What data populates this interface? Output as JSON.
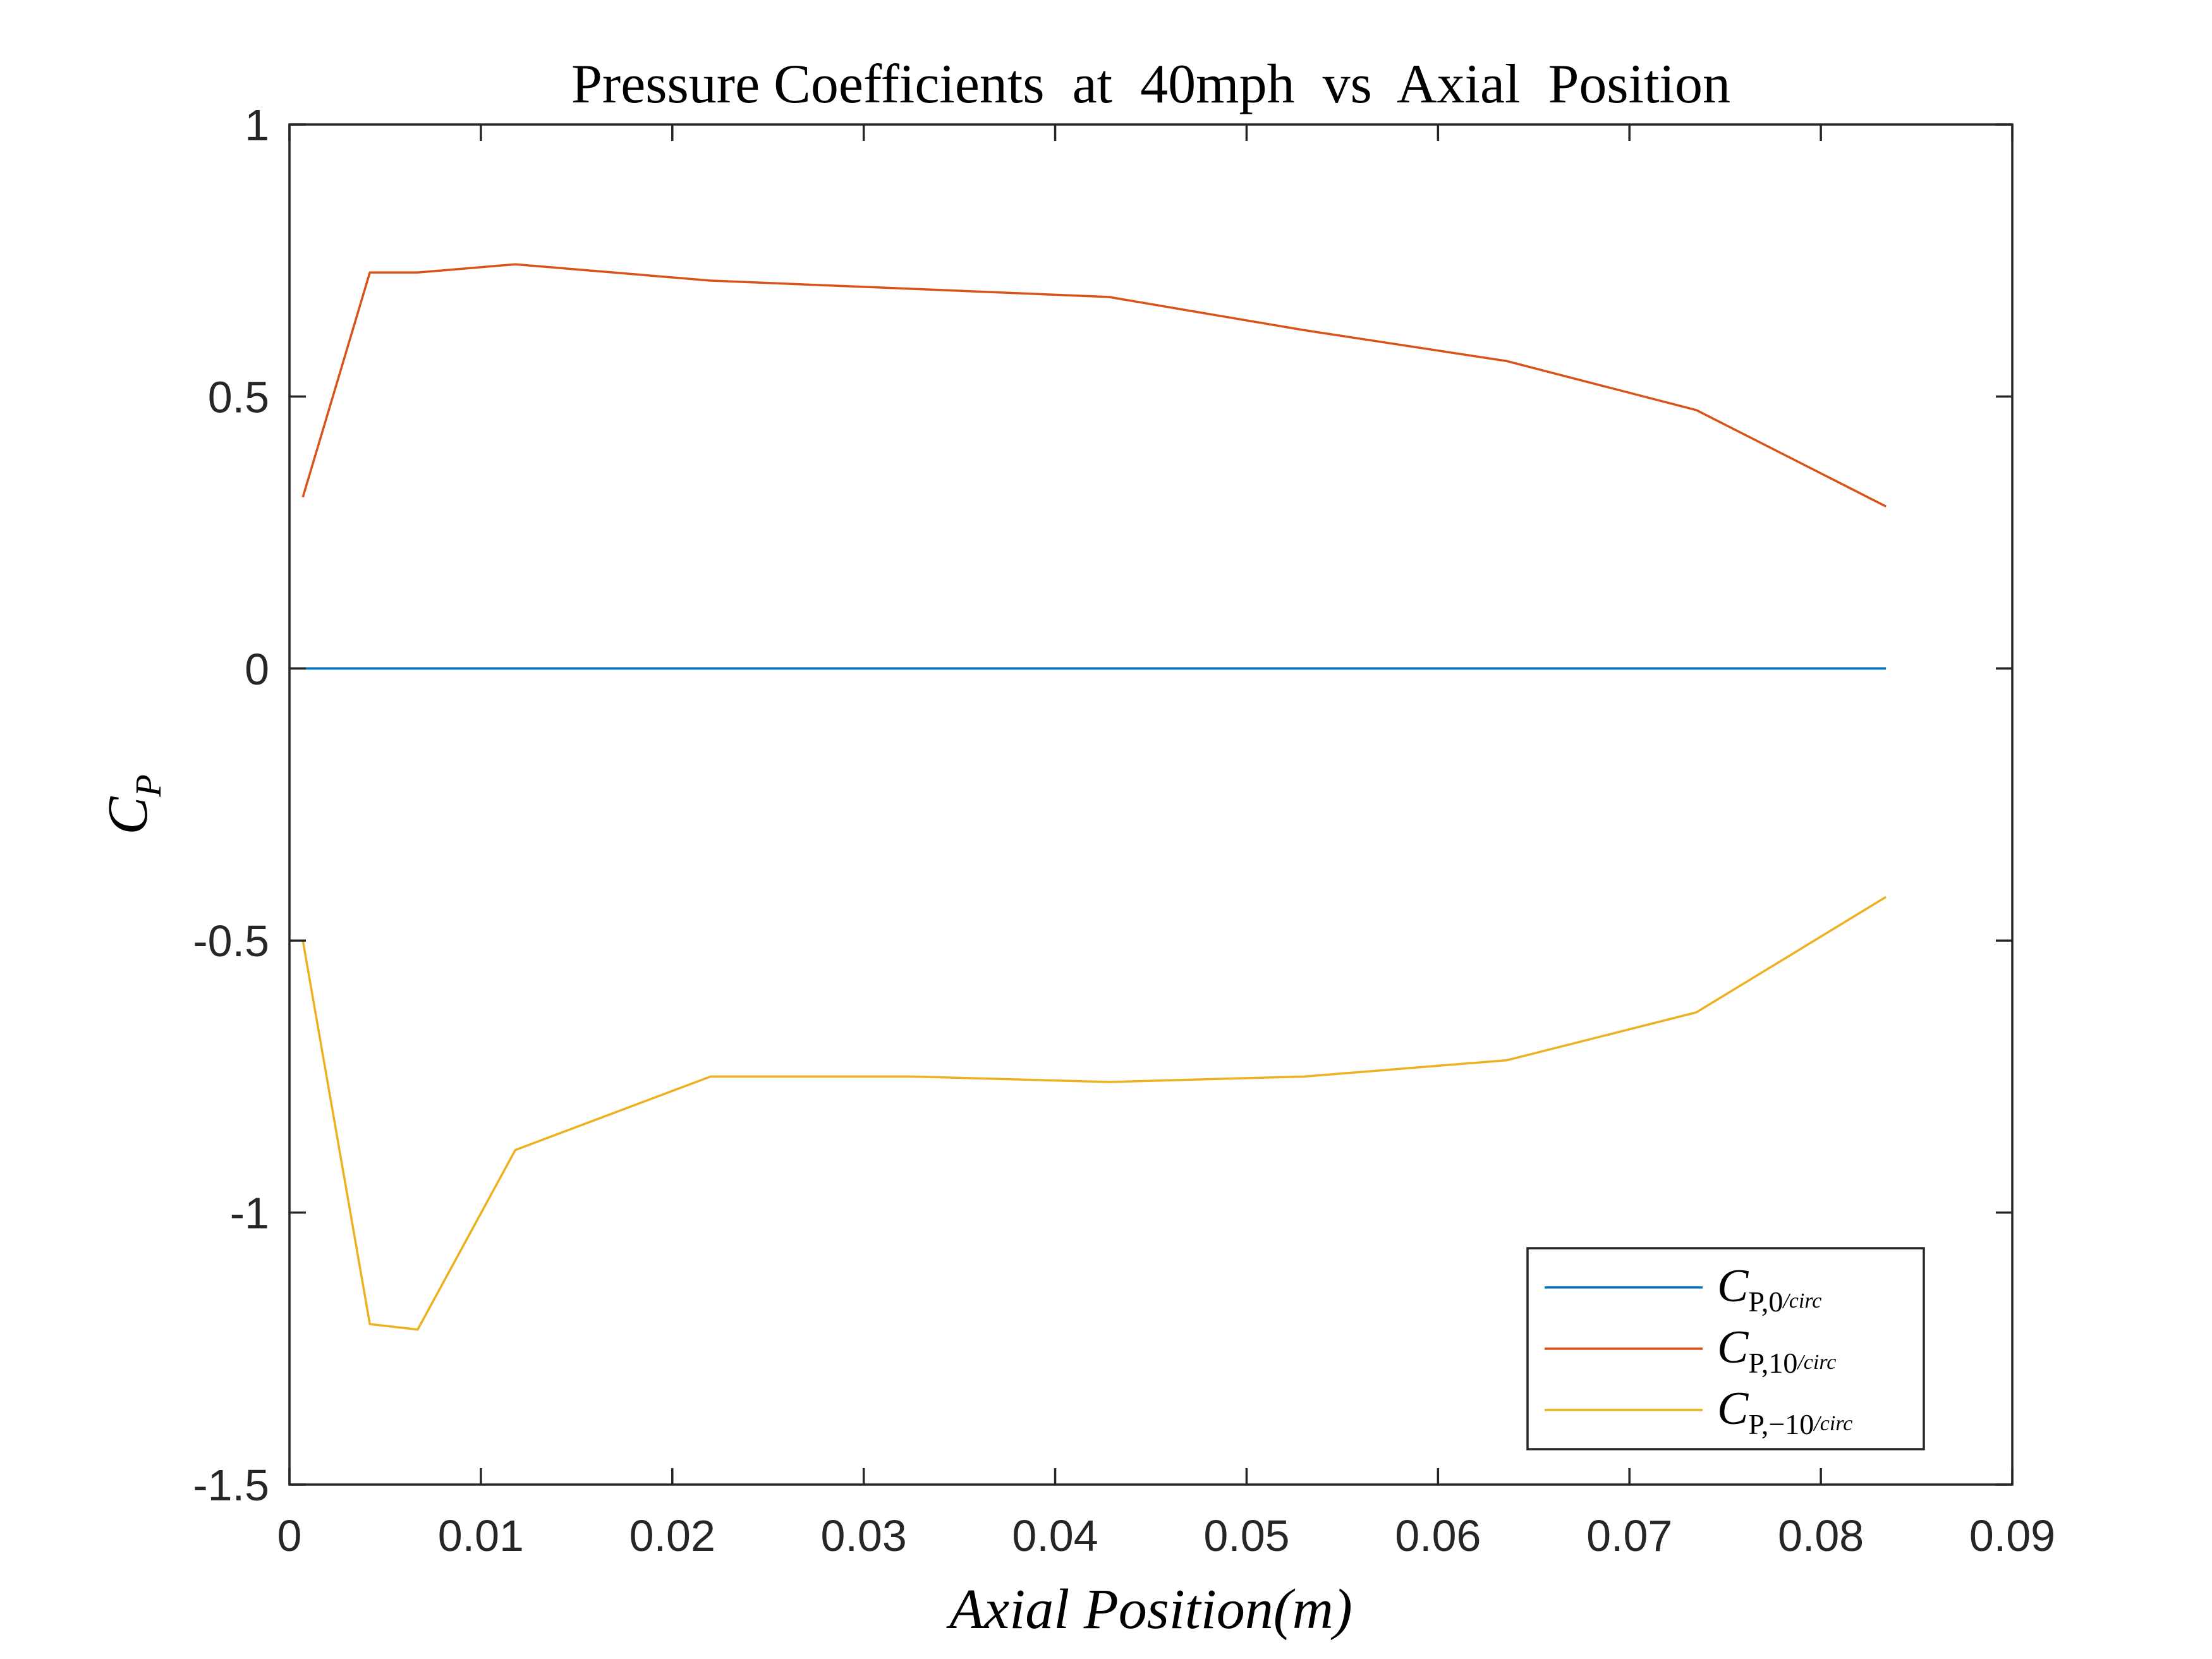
{
  "chart_data": {
    "type": "line",
    "title": "Pressure Coefficients  at  40mph  vs  Axial  Position",
    "xlabel": "Axial Position(m)",
    "ylabel": {
      "main": "C",
      "sub": "P"
    },
    "xlim": [
      0,
      0.09
    ],
    "ylim": [
      -1.5,
      1
    ],
    "xticks": [
      0,
      0.01,
      0.02,
      0.03,
      0.04,
      0.05,
      0.06,
      0.07,
      0.08,
      0.09
    ],
    "xtick_labels": [
      "0",
      "0.01",
      "0.02",
      "0.03",
      "0.04",
      "0.05",
      "0.06",
      "0.07",
      "0.08",
      "0.09"
    ],
    "yticks": [
      1,
      0.5,
      0,
      -0.5,
      -1,
      -1.5
    ],
    "ytick_labels": [
      "1",
      "0.5",
      "0",
      "-0.5",
      "-1",
      "-1.5"
    ],
    "grid": false,
    "legend_position": "bottom-right",
    "x": [
      0.0007,
      0.0042,
      0.0067,
      0.0118,
      0.022,
      0.0325,
      0.0428,
      0.053,
      0.0636,
      0.0735,
      0.0834
    ],
    "series": [
      {
        "name_main": "C",
        "name_sub": "P,0",
        "name_sub2": "/circ",
        "color": "#0072BD",
        "values": [
          0,
          0,
          0,
          0,
          0,
          0,
          0,
          0,
          0,
          0,
          0
        ]
      },
      {
        "name_main": "C",
        "name_sub": "P,10",
        "name_sub2": "/circ",
        "color": "#D95319",
        "values": [
          0.315,
          0.728,
          0.728,
          0.743,
          0.713,
          0.698,
          0.683,
          0.622,
          0.565,
          0.475,
          0.298
        ]
      },
      {
        "name_main": "C",
        "name_sub": "P,−10",
        "name_sub2": "/circ",
        "color": "#EDB120",
        "values": [
          -0.5,
          -1.205,
          -1.215,
          -0.885,
          -0.75,
          -0.75,
          -0.76,
          -0.75,
          -0.72,
          -0.632,
          -0.42
        ]
      }
    ]
  }
}
